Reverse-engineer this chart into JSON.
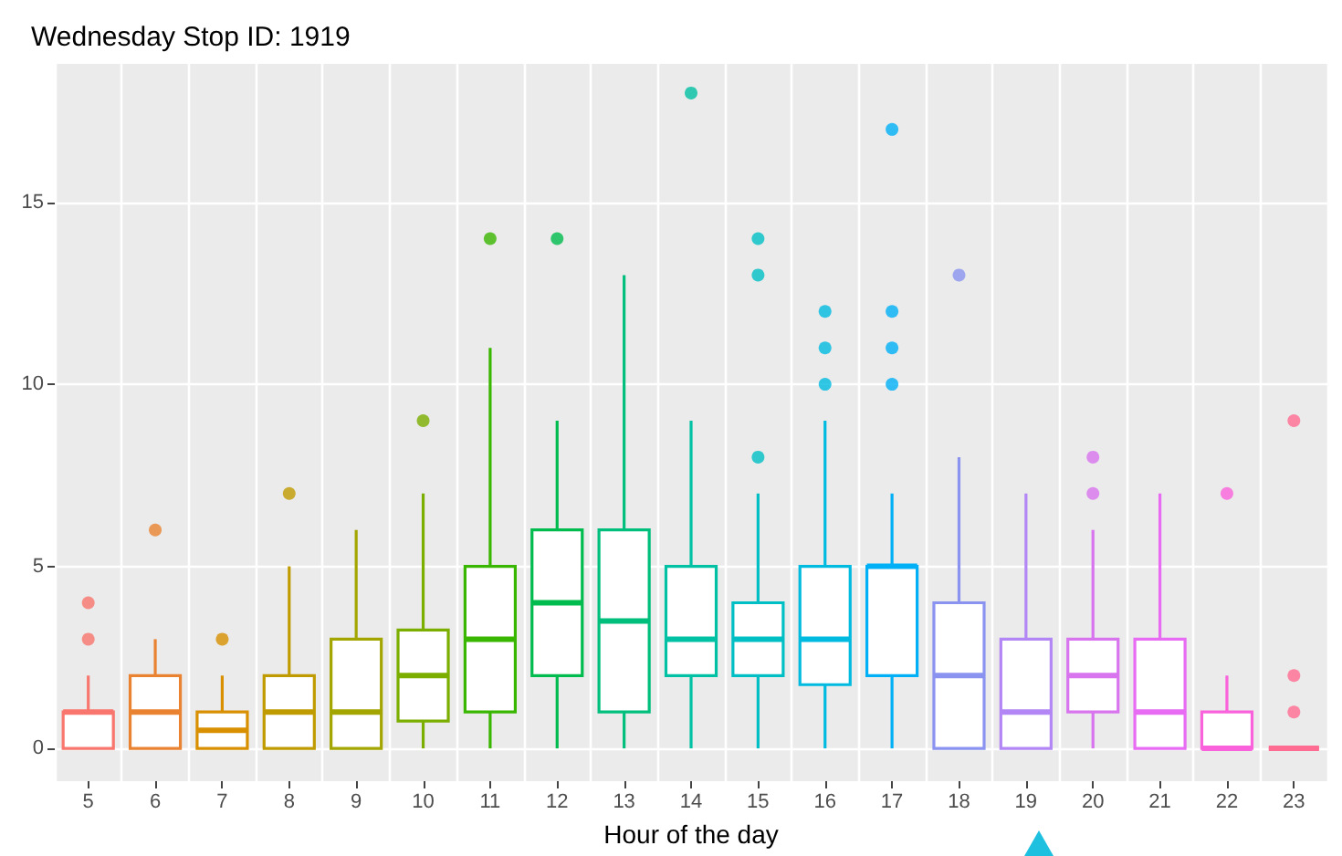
{
  "chart_data": {
    "type": "box",
    "title": "Wednesday Stop ID: 1919",
    "xlabel": "Hour of the day",
    "categories": [
      "5",
      "6",
      "7",
      "8",
      "9",
      "10",
      "11",
      "12",
      "13",
      "14",
      "15",
      "16",
      "17",
      "18",
      "19",
      "20",
      "21",
      "22",
      "23"
    ],
    "colors": [
      "#f8766d",
      "#ea8331",
      "#d89000",
      "#c09b00",
      "#a3a500",
      "#7cae00",
      "#39b600",
      "#00bb4e",
      "#00bf7d",
      "#00c1a3",
      "#00bfc4",
      "#00bae0",
      "#00b0f6",
      "#8b93f0",
      "#b286f5",
      "#d874ee",
      "#e76bf3",
      "#fa62db",
      "#ff6c91"
    ],
    "boxes": [
      {
        "low": 0,
        "q1": 0,
        "median": 1,
        "q3": 1,
        "high": 2,
        "outliers": [
          3,
          4
        ]
      },
      {
        "low": 0,
        "q1": 0,
        "median": 1,
        "q3": 2,
        "high": 3,
        "outliers": [
          6
        ]
      },
      {
        "low": 0,
        "q1": 0,
        "median": 0.5,
        "q3": 1,
        "high": 2,
        "outliers": [
          3
        ]
      },
      {
        "low": 0,
        "q1": 0,
        "median": 1,
        "q3": 2,
        "high": 5,
        "outliers": [
          7
        ]
      },
      {
        "low": 0,
        "q1": 0,
        "median": 1,
        "q3": 3,
        "high": 6
      },
      {
        "low": 0,
        "q1": 0.75,
        "median": 2,
        "q3": 3.25,
        "high": 7,
        "outliers": [
          9
        ]
      },
      {
        "low": 0,
        "q1": 1,
        "median": 3,
        "q3": 5,
        "high": 11,
        "outliers": [
          14
        ]
      },
      {
        "low": 0,
        "q1": 2,
        "median": 4,
        "q3": 6,
        "high": 9,
        "outliers": [
          14
        ]
      },
      {
        "low": 0,
        "q1": 1,
        "median": 3.5,
        "q3": 6,
        "high": 13
      },
      {
        "low": 0,
        "q1": 2,
        "median": 3,
        "q3": 5,
        "high": 9,
        "outliers": [
          18
        ]
      },
      {
        "low": 0,
        "q1": 2,
        "median": 3,
        "q3": 4,
        "high": 7,
        "outliers": [
          8,
          13,
          14
        ]
      },
      {
        "low": 0,
        "q1": 1.75,
        "median": 3,
        "q3": 5,
        "high": 9,
        "outliers": [
          10,
          11,
          12
        ]
      },
      {
        "low": 0,
        "q1": 2,
        "median": 5,
        "q3": 5,
        "high": 7,
        "outliers": [
          10,
          11,
          12,
          17
        ]
      },
      {
        "low": 0,
        "q1": 0,
        "median": 2,
        "q3": 4,
        "high": 8,
        "outliers": [
          13
        ]
      },
      {
        "low": 0,
        "q1": 0,
        "median": 1,
        "q3": 3,
        "high": 7
      },
      {
        "low": 0,
        "q1": 1,
        "median": 2,
        "q3": 3,
        "high": 6,
        "outliers": [
          7,
          8
        ]
      },
      {
        "low": 0,
        "q1": 0,
        "median": 1,
        "q3": 3,
        "high": 7
      },
      {
        "low": 0,
        "q1": 0,
        "median": 0,
        "q3": 1,
        "high": 2,
        "outliers": [
          7
        ]
      },
      {
        "low": 0,
        "q1": 0,
        "median": 0,
        "q3": 0,
        "high": 0,
        "outliers": [
          1,
          2,
          9
        ]
      }
    ],
    "ylim": [
      -0.9,
      18.8
    ],
    "yticks": [
      0,
      5,
      10,
      15
    ],
    "grid": true
  }
}
